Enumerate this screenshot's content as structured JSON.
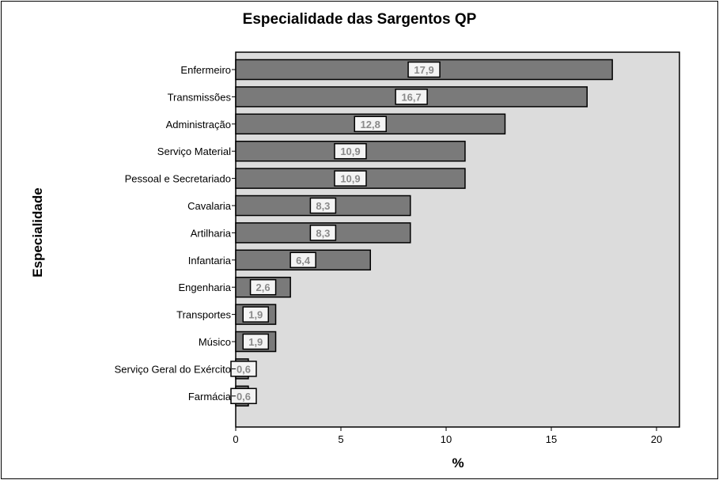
{
  "chart_data": {
    "type": "bar",
    "orientation": "horizontal",
    "title": "Especialidade das Sargentos QP",
    "xlabel": "%",
    "ylabel": "Especialidade",
    "categories": [
      "Enfermeiro",
      "Transmissões",
      "Administração",
      "Serviço Material",
      "Pessoal e Secretariado",
      "Cavalaria",
      "Artilharia",
      "Infantaria",
      "Engenharia",
      "Transportes",
      "Músico",
      "Serviço Geral do Exército",
      "Farmácia"
    ],
    "values": [
      17.9,
      16.7,
      12.8,
      10.9,
      10.9,
      8.3,
      8.3,
      6.4,
      2.6,
      1.9,
      1.9,
      0.6,
      0.6
    ],
    "value_labels": [
      "17,9",
      "16,7",
      "12,8",
      "10,9",
      "10,9",
      "8,3",
      "8,3",
      "6,4",
      "2,6",
      "1,9",
      "1,9",
      "0,6",
      "0,6"
    ],
    "xlim": [
      0,
      21
    ],
    "xticks": [
      0,
      5,
      10,
      15,
      20
    ],
    "grid": false,
    "colors": {
      "bar": "#7a7a7a",
      "plot_bg": "#dcdcdc",
      "label_box": "#f4f4f4",
      "label_text": "#8a8a8a"
    }
  }
}
